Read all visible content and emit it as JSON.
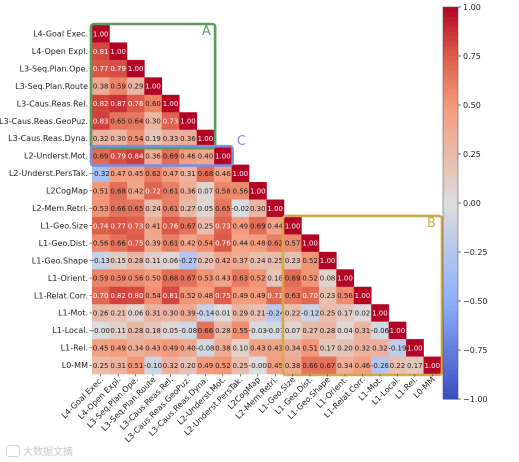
{
  "watermark": "大数据文摘",
  "chart_data": {
    "type": "heatmap",
    "title": "",
    "xlabel": "",
    "ylabel": "",
    "rows": [
      "L4-Goal Exec.",
      "L4-Open Expl.",
      "L3-Seq.Plan.Ope.",
      "L3-Seq.Plan.Route",
      "L3-Caus.Reas.Rel.",
      "L3-Caus.Reas.GeoPuz.",
      "L3-Caus.Reas.Dyna.",
      "L2-Underst.Mot.",
      "L2-Underst.PersTak.",
      "L2CogMap",
      "L2-Mem.Retri.",
      "L1-Geo.Size",
      "L1-Geo.Dist.",
      "L1-Geo.Shape",
      "L1-Orient.",
      "L1-Relat.Corr.",
      "L1-Mot.",
      "L1-Local.",
      "L1-Rel.",
      "L0-MM"
    ],
    "columns": [
      "L4-Goal Exec.",
      "L4-Open Expl.",
      "L3-Seq.Plan.Ope.",
      "L3-Seq.Plan.Route",
      "L3-Caus.Reas.Rel.",
      "L3-Caus.Reas.GeoPuz.",
      "L3-Caus.Reas.Dyna.",
      "L2-Underst.Mot.",
      "L2-Underst.PersTak.",
      "L2CogMap",
      "L2-Mem.Retri.",
      "L1-Geo.Size",
      "L1-Geo.Dist.",
      "L1-Geo.Shape",
      "L1-Orient.",
      "L1-Relat.Corr.",
      "L1-Mot.",
      "L1-Local.",
      "L1-Rel.",
      "L0-MM"
    ],
    "values": [
      [
        "1.00"
      ],
      [
        "0.81",
        "1.00"
      ],
      [
        "0.77",
        "0.79",
        "1.00"
      ],
      [
        "0.38",
        "0.59",
        "0.29",
        "1.00"
      ],
      [
        "0.82",
        "0.87",
        "0.76",
        "0.60",
        "1.00"
      ],
      [
        "0.83",
        "0.65",
        "0.64",
        "0.30",
        "0.73",
        "1.00"
      ],
      [
        "0.32",
        "0.30",
        "0.54",
        "0.19",
        "0.33",
        "0.36",
        "1.00"
      ],
      [
        "0.69",
        "0.79",
        "0.84",
        "0.36",
        "0.69",
        "0.46",
        "0.40",
        "1.00"
      ],
      [
        "-0.32",
        "0.47",
        "0.45",
        "0.62",
        "0.47",
        "0.31",
        "0.68",
        "0.46",
        "1.00"
      ],
      [
        "0.51",
        "0.68",
        "0.42",
        "0.72",
        "0.61",
        "0.36",
        "0.07",
        "0.58",
        "0.56",
        "1.00"
      ],
      [
        "0.53",
        "0.66",
        "0.65",
        "0.24",
        "0.61",
        "0.27",
        "0.05",
        "0.65",
        "-0.02",
        "0.30",
        "1.00"
      ],
      [
        "0.74",
        "0.77",
        "0.73",
        "0.41",
        "0.76",
        "0.67",
        "0.25",
        "0.73",
        "0.49",
        "0.69",
        "0.44",
        "1.00"
      ],
      [
        "0.56",
        "0.66",
        "0.75",
        "0.39",
        "0.61",
        "0.42",
        "0.54",
        "0.76",
        "0.44",
        "0.48",
        "0.62",
        "0.57",
        "1.00"
      ],
      [
        "-0.13",
        "0.15",
        "0.28",
        "0.11",
        "0.06",
        "-0.27",
        "0.20",
        "0.42",
        "0.37",
        "0.24",
        "0.25",
        "0.23",
        "0.52",
        "1.00"
      ],
      [
        "0.59",
        "0.59",
        "0.56",
        "0.50",
        "0.68",
        "0.67",
        "0.53",
        "0.43",
        "0.63",
        "0.52",
        "0.18",
        "0.69",
        "0.52",
        "0.08",
        "1.00"
      ],
      [
        "0.70",
        "0.82",
        "0.80",
        "0.54",
        "0.81",
        "0.52",
        "0.48",
        "0.75",
        "0.49",
        "0.49",
        "0.71",
        "0.63",
        "0.70",
        "0.23",
        "0.56",
        "1.00"
      ],
      [
        "0.26",
        "0.21",
        "0.06",
        "0.31",
        "0.30",
        "0.39",
        "-0.14",
        "0.01",
        "0.29",
        "0.21",
        "-0.24",
        "0.22",
        "-0.12",
        "0.25",
        "0.17",
        "0.02",
        "1.00"
      ],
      [
        "-0.00",
        "0.11",
        "0.28",
        "0.18",
        "0.05",
        "-0.08",
        "0.66",
        "0.28",
        "0.55",
        "-0.03",
        "-0.07",
        "0.07",
        "0.27",
        "0.28",
        "0.04",
        "0.31",
        "-0.06",
        "1.00"
      ],
      [
        "0.45",
        "0.49",
        "0.34",
        "0.43",
        "0.49",
        "0.40",
        "-0.08",
        "0.38",
        "0.10",
        "0.43",
        "0.43",
        "0.34",
        "0.51",
        "0.17",
        "0.20",
        "0.32",
        "0.32",
        "-0.19",
        "1.00"
      ],
      [
        "0.25",
        "0.31",
        "0.51",
        "-0.10",
        "0.32",
        "0.20",
        "0.49",
        "0.52",
        "0.25",
        "-0.00",
        "0.45",
        "0.38",
        "0.66",
        "0.67",
        "0.34",
        "0.46",
        "-0.26",
        "0.22",
        "0.17",
        "1.00"
      ]
    ],
    "vmin": -1.0,
    "vmax": 1.0,
    "colormap": "coolwarm",
    "colors": {
      "low": "#3b4cc0",
      "mid": "#dddddd",
      "high": "#b40426"
    },
    "colorbar": {
      "ticks": [
        "1.00",
        "0.75",
        "0.50",
        "0.25",
        "0.00",
        "−0.25",
        "−0.50",
        "−0.75",
        "−1.00"
      ]
    },
    "annotations": [
      {
        "label": "A",
        "color": "#5a9c5a"
      },
      {
        "label": "B",
        "color": "#d4a84a"
      },
      {
        "label": "C",
        "color": "#7b8fe0"
      }
    ]
  }
}
